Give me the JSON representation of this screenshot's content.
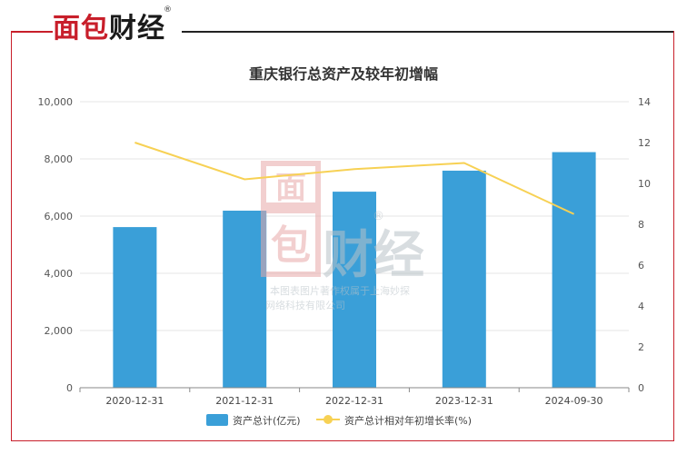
{
  "logo": {
    "part1": "面包",
    "part2": "财经",
    "reg": "®"
  },
  "chart_data": {
    "type": "bar",
    "title": "重庆银行总资产及较年初增幅",
    "categories": [
      "2020-12-31",
      "2021-12-31",
      "2022-12-31",
      "2023-12-31",
      "2024-09-30"
    ],
    "series": [
      {
        "name": "资产总计(亿元)",
        "type": "bar",
        "axis": "left",
        "color": "#3a9fd8",
        "values": [
          5616,
          6190,
          6854,
          7589,
          8237
        ]
      },
      {
        "name": "资产总计相对年初增长率(%)",
        "type": "line",
        "axis": "right",
        "color": "#f7d154",
        "values": [
          12.0,
          10.2,
          10.7,
          11.0,
          8.5
        ]
      }
    ],
    "y_left": {
      "min": 0,
      "max": 10000,
      "ticks": [
        "0",
        "2,000",
        "4,000",
        "6,000",
        "8,000",
        "10,000"
      ]
    },
    "y_right": {
      "min": 0,
      "max": 14,
      "ticks": [
        "0",
        "2",
        "4",
        "6",
        "8",
        "10",
        "12",
        "14"
      ]
    },
    "grid": true,
    "legend_position": "bottom"
  },
  "watermark": {
    "logo_top": "面",
    "logo_bottom": "包",
    "logo_right": "财经",
    "reg": "®",
    "line1": "本图表图片著作权属于上海妙探",
    "line2": "网络科技有限公司"
  }
}
